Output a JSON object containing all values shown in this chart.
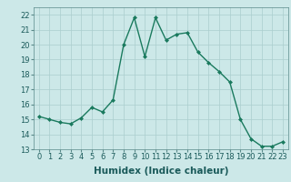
{
  "x": [
    0,
    1,
    2,
    3,
    4,
    5,
    6,
    7,
    8,
    9,
    10,
    11,
    12,
    13,
    14,
    15,
    16,
    17,
    18,
    19,
    20,
    21,
    22,
    23
  ],
  "y": [
    15.2,
    15.0,
    14.8,
    14.7,
    15.1,
    15.8,
    15.5,
    16.3,
    20.0,
    21.8,
    19.2,
    21.8,
    20.3,
    20.7,
    20.8,
    19.5,
    18.8,
    18.2,
    17.5,
    15.0,
    13.7,
    13.2,
    13.2,
    13.5
  ],
  "line_color": "#1a7a5e",
  "marker": "D",
  "marker_size": 2.0,
  "line_width": 1.0,
  "xlabel": "Humidex (Indice chaleur)",
  "xlim": [
    -0.5,
    23.5
  ],
  "ylim": [
    13,
    22.5
  ],
  "yticks": [
    13,
    14,
    15,
    16,
    17,
    18,
    19,
    20,
    21,
    22
  ],
  "xticks": [
    0,
    1,
    2,
    3,
    4,
    5,
    6,
    7,
    8,
    9,
    10,
    11,
    12,
    13,
    14,
    15,
    16,
    17,
    18,
    19,
    20,
    21,
    22,
    23
  ],
  "background_color": "#cce8e8",
  "grid_color": "#aacece",
  "tick_label_fontsize": 6.0,
  "xlabel_fontsize": 7.5
}
